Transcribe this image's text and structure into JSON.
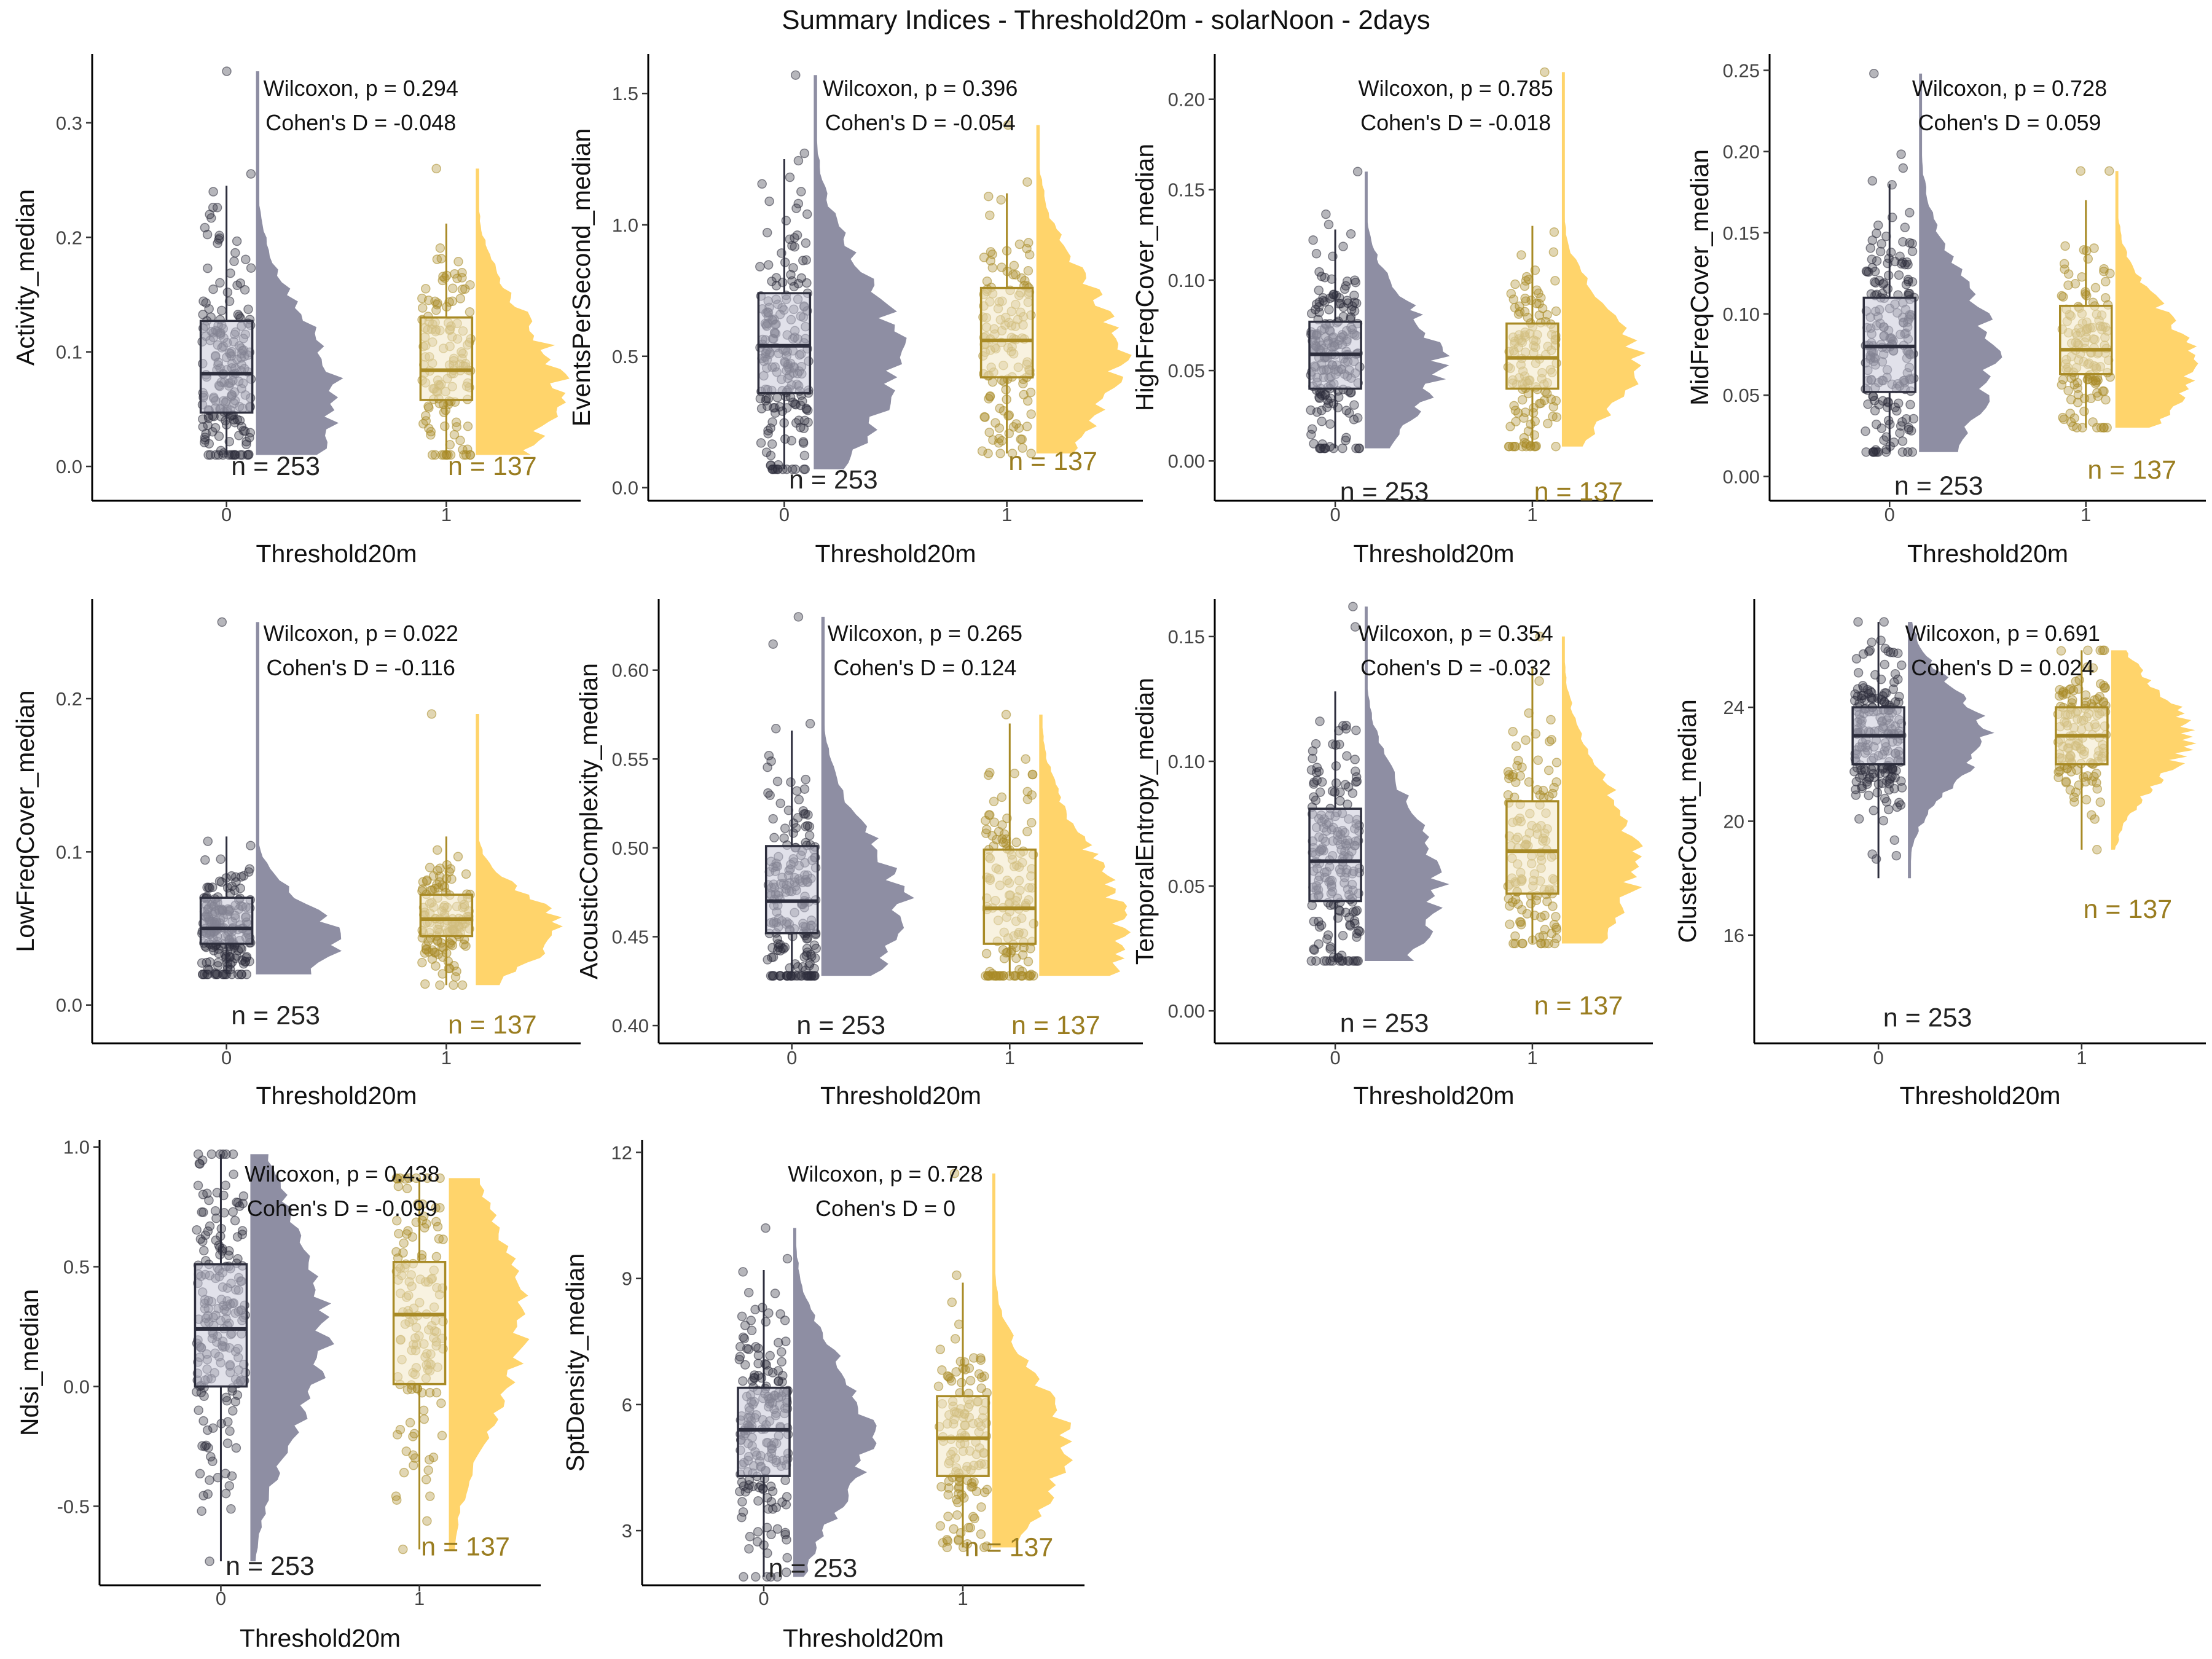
{
  "title": "Summary Indices - Threshold20m - solarNoon - 2days",
  "colors": {
    "group0_fill": "#8e8ea3",
    "group0_point": "#2d2e3d",
    "group0_box_fill": "#c9c9d8",
    "group1_fill": "#ffd46b",
    "group1_point": "#a88a25",
    "group1_box_fill": "#f3e8c6",
    "group1_text": "#9a7d20",
    "group0_text": "#222222"
  },
  "chart_data": [
    {
      "type": "raincloud",
      "ylabel": "Activity_median",
      "xlabel": "Threshold20m",
      "categories": [
        "0",
        "1"
      ],
      "yticks": [
        "0.0",
        "0.1",
        "0.2",
        "0.3"
      ],
      "ytick_values": [
        0,
        0.1,
        0.2,
        0.3
      ],
      "ylim": [
        -0.03,
        0.36
      ],
      "wilcoxon": "Wilcoxon, p = 0.294",
      "cohen": "Cohen's D = -0.048",
      "series": [
        {
          "n_label": "n = 253",
          "min": 0.01,
          "q1": 0.047,
          "median": 0.081,
          "q3": 0.127,
          "max": 0.245,
          "mode": 0.06,
          "max_outlier": 0.345,
          "n_points": 253
        },
        {
          "n_label": "n = 137",
          "min": 0.01,
          "q1": 0.058,
          "median": 0.084,
          "q3": 0.13,
          "max": 0.212,
          "mode": 0.07,
          "max_outlier": 0.26,
          "n_points": 137
        }
      ],
      "n_label_y": [
        0.0,
        0.0
      ]
    },
    {
      "type": "raincloud",
      "ylabel": "EventsPerSecond_median",
      "xlabel": "Threshold20m",
      "categories": [
        "0",
        "1"
      ],
      "yticks": [
        "0.0",
        "0.5",
        "1.0",
        "1.5"
      ],
      "ytick_values": [
        0,
        0.5,
        1.0,
        1.5
      ],
      "ylim": [
        -0.05,
        1.65
      ],
      "wilcoxon": "Wilcoxon, p = 0.396",
      "cohen": "Cohen's D = -0.054",
      "series": [
        {
          "n_label": "n = 253",
          "min": 0.07,
          "q1": 0.36,
          "median": 0.54,
          "q3": 0.74,
          "max": 1.25,
          "mode": 0.5,
          "max_outlier": 1.57,
          "n_points": 253
        },
        {
          "n_label": "n = 137",
          "min": 0.13,
          "q1": 0.42,
          "median": 0.56,
          "q3": 0.76,
          "max": 1.12,
          "mode": 0.5,
          "max_outlier": 1.38,
          "n_points": 137
        }
      ],
      "n_label_y": [
        0.03,
        0.1
      ]
    },
    {
      "type": "raincloud",
      "ylabel": "HighFreqCover_median",
      "xlabel": "Threshold20m",
      "categories": [
        "0",
        "1"
      ],
      "yticks": [
        "0.00",
        "0.05",
        "0.10",
        "0.15",
        "0.20"
      ],
      "ytick_values": [
        0,
        0.05,
        0.1,
        0.15,
        0.2
      ],
      "ylim": [
        -0.022,
        0.225
      ],
      "wilcoxon": "Wilcoxon, p = 0.785",
      "cohen": "Cohen's D = -0.018",
      "series": [
        {
          "n_label": "n = 253",
          "min": 0.007,
          "q1": 0.04,
          "median": 0.059,
          "q3": 0.077,
          "max": 0.128,
          "mode": 0.055,
          "max_outlier": 0.16,
          "n_points": 253
        },
        {
          "n_label": "n = 137",
          "min": 0.008,
          "q1": 0.04,
          "median": 0.057,
          "q3": 0.076,
          "max": 0.13,
          "mode": 0.055,
          "max_outlier": 0.215,
          "n_points": 137
        }
      ],
      "n_label_y": [
        -0.017,
        -0.017
      ]
    },
    {
      "type": "raincloud",
      "ylabel": "MidFreqCover_median",
      "xlabel": "Threshold20m",
      "categories": [
        "0",
        "1"
      ],
      "yticks": [
        "0.00",
        "0.05",
        "0.10",
        "0.15",
        "0.20",
        "0.25"
      ],
      "ytick_values": [
        0,
        0.05,
        0.1,
        0.15,
        0.2,
        0.25
      ],
      "ylim": [
        -0.015,
        0.26
      ],
      "wilcoxon": "Wilcoxon, p = 0.728",
      "cohen": "Cohen's D = 0.059",
      "series": [
        {
          "n_label": "n = 253",
          "min": 0.015,
          "q1": 0.052,
          "median": 0.08,
          "q3": 0.11,
          "max": 0.18,
          "mode": 0.072,
          "max_outlier": 0.248,
          "n_points": 253
        },
        {
          "n_label": "n = 137",
          "min": 0.03,
          "q1": 0.063,
          "median": 0.078,
          "q3": 0.105,
          "max": 0.17,
          "mode": 0.07,
          "max_outlier": 0.188,
          "n_points": 137
        }
      ],
      "n_label_y": [
        -0.006,
        0.004
      ]
    },
    {
      "type": "raincloud",
      "ylabel": "LowFreqCover_median",
      "xlabel": "Threshold20m",
      "categories": [
        "0",
        "1"
      ],
      "yticks": [
        "0.0",
        "0.1",
        "0.2"
      ],
      "ytick_values": [
        0,
        0.1,
        0.2
      ],
      "ylim": [
        -0.025,
        0.265
      ],
      "wilcoxon": "Wilcoxon, p = 0.022",
      "cohen": "Cohen's D = -0.116",
      "series": [
        {
          "n_label": "n = 253",
          "min": 0.02,
          "q1": 0.04,
          "median": 0.05,
          "q3": 0.07,
          "max": 0.11,
          "mode": 0.042,
          "max_outlier": 0.25,
          "n_points": 253
        },
        {
          "n_label": "n = 137",
          "min": 0.013,
          "q1": 0.045,
          "median": 0.056,
          "q3": 0.072,
          "max": 0.11,
          "mode": 0.05,
          "max_outlier": 0.19,
          "n_points": 137
        }
      ],
      "n_label_y": [
        -0.007,
        -0.013
      ]
    },
    {
      "type": "raincloud",
      "ylabel": "AcousticComplexity_median",
      "xlabel": "Threshold20m",
      "categories": [
        "0",
        "1"
      ],
      "yticks": [
        "0.40",
        "0.45",
        "0.50",
        "0.55",
        "0.60"
      ],
      "ytick_values": [
        0.4,
        0.45,
        0.5,
        0.55,
        0.6
      ],
      "ylim": [
        0.39,
        0.64
      ],
      "wilcoxon": "Wilcoxon, p = 0.265",
      "cohen": "Cohen's D = 0.124",
      "series": [
        {
          "n_label": "n = 253",
          "min": 0.428,
          "q1": 0.452,
          "median": 0.47,
          "q3": 0.501,
          "max": 0.566,
          "mode": 0.465,
          "max_outlier": 0.63,
          "n_points": 253
        },
        {
          "n_label": "n = 137",
          "min": 0.428,
          "q1": 0.446,
          "median": 0.466,
          "q3": 0.499,
          "max": 0.57,
          "mode": 0.455,
          "max_outlier": 0.575,
          "n_points": 137
        }
      ],
      "n_label_y": [
        0.4,
        0.4
      ]
    },
    {
      "type": "raincloud",
      "ylabel": "TemporalEntropy_median",
      "xlabel": "Threshold20m",
      "categories": [
        "0",
        "1"
      ],
      "yticks": [
        "0.00",
        "0.05",
        "0.10",
        "0.15"
      ],
      "ytick_values": [
        0,
        0.05,
        0.1,
        0.15
      ],
      "ylim": [
        -0.013,
        0.165
      ],
      "wilcoxon": "Wilcoxon, p = 0.354",
      "cohen": "Cohen's D = -0.032",
      "series": [
        {
          "n_label": "n = 253",
          "min": 0.02,
          "q1": 0.044,
          "median": 0.06,
          "q3": 0.081,
          "max": 0.128,
          "mode": 0.052,
          "max_outlier": 0.162,
          "n_points": 253
        },
        {
          "n_label": "n = 137",
          "min": 0.027,
          "q1": 0.047,
          "median": 0.064,
          "q3": 0.084,
          "max": 0.138,
          "mode": 0.06,
          "max_outlier": 0.15,
          "n_points": 137
        }
      ],
      "n_label_y": [
        -0.005,
        0.002
      ]
    },
    {
      "type": "raincloud",
      "ylabel": "ClusterCount_median",
      "xlabel": "Threshold20m",
      "categories": [
        "0",
        "1"
      ],
      "yticks": [
        "16",
        "20",
        "24"
      ],
      "ytick_values": [
        16,
        20,
        24
      ],
      "ylim": [
        12.2,
        27.8
      ],
      "wilcoxon": "Wilcoxon, p = 0.691",
      "cohen": "Cohen's D = 0.024",
      "series": [
        {
          "n_label": "n = 253",
          "min": 18,
          "q1": 22,
          "median": 23,
          "q3": 24,
          "max": 27,
          "mode": 23,
          "max_outlier": 27,
          "n_points": 253
        },
        {
          "n_label": "n = 137",
          "min": 19,
          "q1": 22,
          "median": 23,
          "q3": 24,
          "max": 26,
          "mode": 23,
          "max_outlier": 26,
          "n_points": 137
        }
      ],
      "n_label_y": [
        13.1,
        16.9
      ]
    },
    {
      "type": "raincloud",
      "ylabel": "Ndsi_median",
      "xlabel": "Threshold20m",
      "categories": [
        "0",
        "1"
      ],
      "yticks": [
        "-0.5",
        "0.0",
        "0.5",
        "1.0"
      ],
      "ytick_values": [
        -0.5,
        0,
        0.5,
        1.0
      ],
      "ylim": [
        -0.83,
        1.03
      ],
      "wilcoxon": "Wilcoxon, p = 0.438",
      "cohen": "Cohen's D = -0.099",
      "series": [
        {
          "n_label": "n = 253",
          "min": -0.73,
          "q1": 0.0,
          "median": 0.24,
          "q3": 0.51,
          "max": 0.97,
          "mode": 0.25,
          "max_outlier": 0.97,
          "n_points": 253
        },
        {
          "n_label": "n = 137",
          "min": -0.68,
          "q1": 0.01,
          "median": 0.3,
          "q3": 0.52,
          "max": 0.87,
          "mode": 0.3,
          "max_outlier": 0.87,
          "n_points": 137
        }
      ],
      "n_label_y": [
        -0.75,
        -0.67
      ]
    },
    {
      "type": "raincloud",
      "ylabel": "SptDensity_median",
      "xlabel": "Threshold20m",
      "categories": [
        "0",
        "1"
      ],
      "yticks": [
        "3",
        "6",
        "9",
        "12"
      ],
      "ytick_values": [
        3,
        6,
        9,
        12
      ],
      "ylim": [
        1.7,
        12.3
      ],
      "wilcoxon": "Wilcoxon, p = 0.728",
      "cohen": "Cohen's D = 0",
      "series": [
        {
          "n_label": "n = 253",
          "min": 1.9,
          "q1": 4.3,
          "median": 5.4,
          "q3": 6.4,
          "max": 9.2,
          "mode": 5.3,
          "max_outlier": 10.2,
          "n_points": 253
        },
        {
          "n_label": "n = 137",
          "min": 2.6,
          "q1": 4.3,
          "median": 5.2,
          "q3": 6.2,
          "max": 8.9,
          "mode": 5.0,
          "max_outlier": 11.5,
          "n_points": 137
        }
      ],
      "n_label_y": [
        2.1,
        2.6
      ]
    }
  ]
}
